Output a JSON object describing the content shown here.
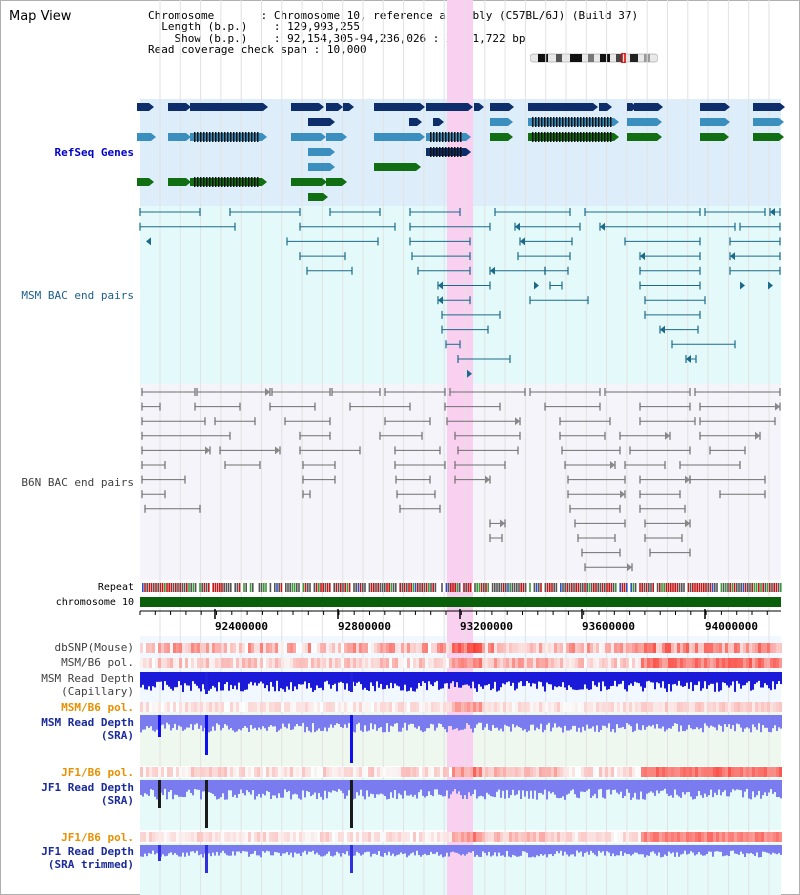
{
  "app": {
    "title": "Map View"
  },
  "info": {
    "chromosome_label": "Chromosome",
    "chromosome_value": "Chromosome 10, reference assembly (C57BL/6J) (Build 37)",
    "length_label": "Length (b.p.)",
    "length_value": "129,993,255",
    "show_label": "Show (b.p.)",
    "show_value": "92,154,305-94,236,026 : 2,081,722 bp",
    "span_label": "Read coverage check span",
    "span_value": "10,000"
  },
  "tracks": {
    "refseq": "RefSeq Genes",
    "msm_bac": "MSM BAC end pairs",
    "b6n_bac": "B6N BAC end pairs",
    "repeat": "Repeat",
    "chromosome": "chromosome 10",
    "dbsnp": "dbSNP(Mouse)",
    "msm_b6_pol1": "MSM/B6 pol.",
    "msm_depth_cap_1": "MSM Read Depth",
    "msm_depth_cap_2": "(Capillary)",
    "msm_b6_pol2": "MSM/B6 pol.",
    "msm_depth_sra_1": "MSM Read Depth",
    "msm_depth_sra_2": "(SRA)",
    "jf1_b6_pol1": "JF1/B6 pol.",
    "jf1_depth_sra_1": "JF1 Read Depth",
    "jf1_depth_sra_2": "(SRA)",
    "jf1_b6_pol2": "JF1/B6 pol.",
    "jf1_depth_trim_1": "JF1 Read Depth",
    "jf1_depth_trim_2": "(SRA trimmed)"
  },
  "ruler": {
    "ticks": [
      "92400000",
      "92800000",
      "93200000",
      "93600000",
      "94000000"
    ]
  },
  "colors": {
    "highlight": "#f9d0ef",
    "refseq_bg": "#ddeefa",
    "msm_bg": "#e4fafa",
    "b6n_bg": "#f4f4fa",
    "navy": "#0d2d6b",
    "steel": "#3a8fbf",
    "green": "#126e12",
    "teal_line": "#1b6a8a",
    "gray_line": "#707070",
    "chromosome": "#0a5f0a",
    "depth_blue": "#2020dd",
    "depth_lilac": "#7b7bf0"
  }
}
